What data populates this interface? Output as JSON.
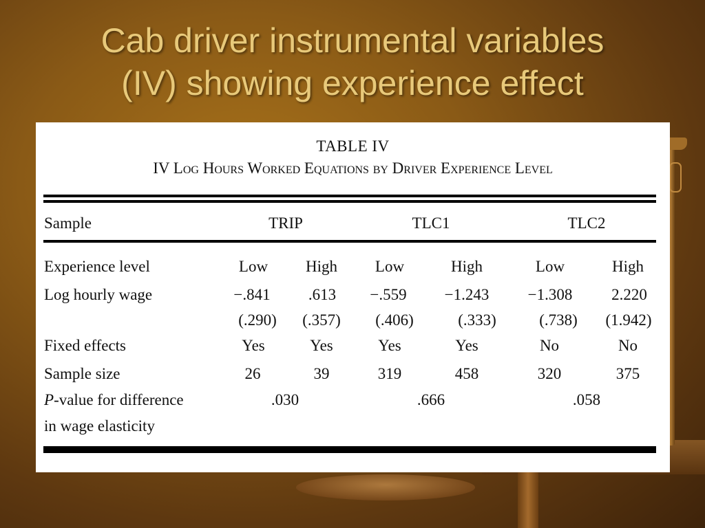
{
  "slide": {
    "title_line1": "Cab driver instrumental variables",
    "title_line2": "(IV) showing experience effect"
  },
  "table": {
    "title": "TABLE IV",
    "subtitle": "IV Log Hours Worked Equations by Driver Experience Level",
    "sample_label": "Sample",
    "groups": [
      "TRIP",
      "TLC1",
      "TLC2"
    ],
    "rows": {
      "experience": {
        "label": "Experience level",
        "values": [
          "Low",
          "High",
          "Low",
          "High",
          "Low",
          "High"
        ]
      },
      "wage": {
        "label": "Log hourly wage",
        "values": [
          "−.841",
          ".613",
          "−.559",
          "−1.243",
          "−1.308",
          "2.220"
        ]
      },
      "se": {
        "values": [
          "(.290)",
          "(.357)",
          "(.406)",
          "(.333)",
          "(.738)",
          "(1.942)"
        ]
      },
      "fixed": {
        "label": "Fixed effects",
        "values": [
          "Yes",
          "Yes",
          "Yes",
          "Yes",
          "No",
          "No"
        ]
      },
      "size": {
        "label": "Sample size",
        "values": [
          "26",
          "39",
          "319",
          "458",
          "320",
          "375"
        ]
      },
      "pvalue": {
        "label_p": "P",
        "label_rest": "-value for difference",
        "label_line2": "in wage elasticity",
        "values": [
          ".030",
          ".666",
          ".058"
        ]
      }
    }
  }
}
